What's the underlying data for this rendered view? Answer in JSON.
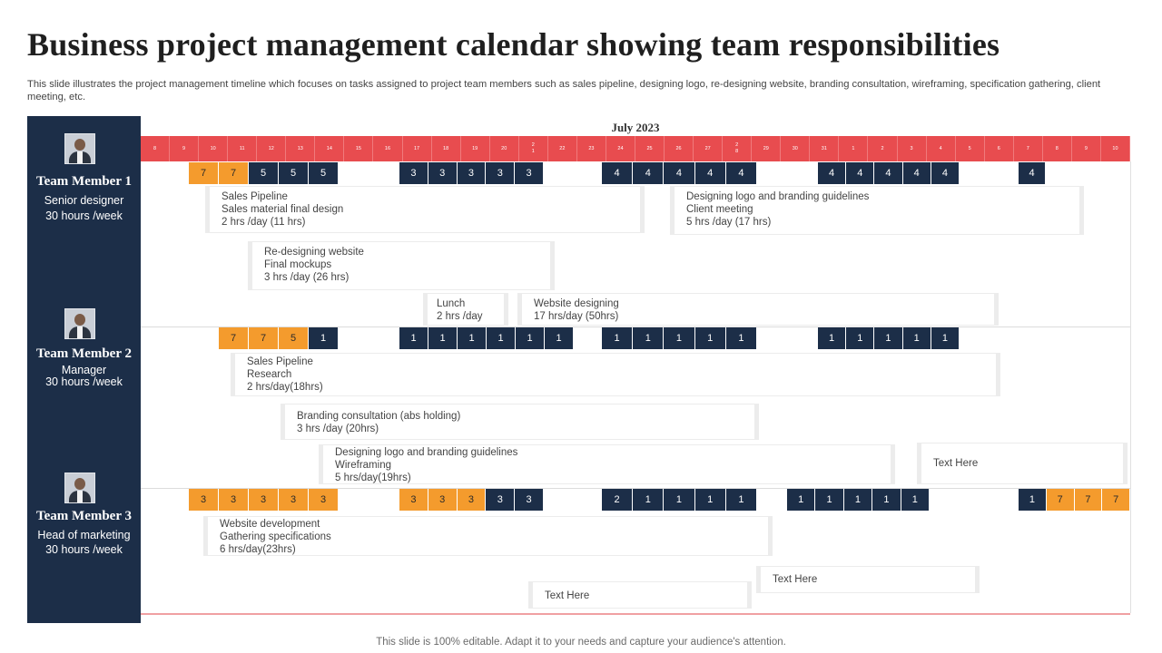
{
  "title": "Business project management calendar showing team responsibilities",
  "subtitle": "This slide illustrates the project management timeline which focuses on tasks assigned to project team members such as sales pipeline, designing logo, re-designing website, branding consultation, wireframing, specification gathering, client meeting, etc.",
  "month": "July 2023",
  "days": [
    "8",
    "9",
    "10",
    "11",
    "12",
    "13",
    "14",
    "15",
    "16",
    "17",
    "18",
    "19",
    "20",
    "2\n1",
    "22",
    "23",
    "24",
    "25",
    "26",
    "27",
    "2\n8",
    "29",
    "30",
    "31",
    "1",
    "2",
    "3",
    "4",
    "5",
    "6",
    "7",
    "8",
    "9",
    "10"
  ],
  "members": [
    {
      "name": "Team Member 1",
      "role": "Senior designer",
      "hours": "30 hours /week"
    },
    {
      "name": "Team Member 2",
      "role": "Manager",
      "hours": "30 hours /week"
    },
    {
      "name": "Team Member 3",
      "role": "Head of marketing",
      "hours": "30 hours /week"
    }
  ],
  "rows": [
    {
      "cells": [
        {
          "label": "7",
          "color": "orange"
        },
        {
          "label": "7",
          "color": "orange"
        },
        {
          "label": "5",
          "color": "navy"
        },
        {
          "label": "5",
          "color": "navy"
        },
        {
          "label": "5",
          "color": "navy"
        },
        {
          "label": "3",
          "color": "navy"
        },
        {
          "label": "3",
          "color": "navy"
        },
        {
          "label": "3",
          "color": "navy"
        },
        {
          "label": "3",
          "color": "navy"
        },
        {
          "label": "3",
          "color": "navy"
        },
        {
          "label": "4",
          "color": "navy"
        },
        {
          "label": "4",
          "color": "navy"
        },
        {
          "label": "4",
          "color": "navy"
        },
        {
          "label": "4",
          "color": "navy"
        },
        {
          "label": "4",
          "color": "navy"
        },
        {
          "label": "4",
          "color": "navy"
        },
        {
          "label": "4",
          "color": "navy"
        },
        {
          "label": "4",
          "color": "navy"
        },
        {
          "label": "4",
          "color": "navy"
        },
        {
          "label": "4",
          "color": "navy"
        },
        {
          "label": "4",
          "color": "navy"
        }
      ]
    },
    {
      "cells": [
        {
          "label": "7",
          "color": "orange"
        },
        {
          "label": "7",
          "color": "orange"
        },
        {
          "label": "5",
          "color": "orange"
        },
        {
          "label": "1",
          "color": "navy"
        },
        {
          "label": "1",
          "color": "navy"
        },
        {
          "label": "1",
          "color": "navy"
        },
        {
          "label": "1",
          "color": "navy"
        },
        {
          "label": "1",
          "color": "navy"
        },
        {
          "label": "1",
          "color": "navy"
        },
        {
          "label": "1",
          "color": "navy"
        },
        {
          "label": "1",
          "color": "navy"
        },
        {
          "label": "1",
          "color": "navy"
        },
        {
          "label": "1",
          "color": "navy"
        },
        {
          "label": "1",
          "color": "navy"
        },
        {
          "label": "1",
          "color": "navy"
        },
        {
          "label": "1",
          "color": "navy"
        },
        {
          "label": "1",
          "color": "navy"
        },
        {
          "label": "1",
          "color": "navy"
        },
        {
          "label": "1",
          "color": "navy"
        },
        {
          "label": "1",
          "color": "navy"
        }
      ]
    },
    {
      "cells": [
        {
          "label": "3",
          "color": "orange"
        },
        {
          "label": "3",
          "color": "orange"
        },
        {
          "label": "3",
          "color": "orange"
        },
        {
          "label": "3",
          "color": "orange"
        },
        {
          "label": "3",
          "color": "orange"
        },
        {
          "label": "3",
          "color": "orange"
        },
        {
          "label": "3",
          "color": "orange"
        },
        {
          "label": "3",
          "color": "orange"
        },
        {
          "label": "3",
          "color": "navy"
        },
        {
          "label": "3",
          "color": "navy"
        },
        {
          "label": "2",
          "color": "navy"
        },
        {
          "label": "1",
          "color": "navy"
        },
        {
          "label": "1",
          "color": "navy"
        },
        {
          "label": "1",
          "color": "navy"
        },
        {
          "label": "1",
          "color": "navy"
        },
        {
          "label": "1",
          "color": "navy"
        },
        {
          "label": "1",
          "color": "navy"
        },
        {
          "label": "1",
          "color": "navy"
        },
        {
          "label": "1",
          "color": "navy"
        },
        {
          "label": "1",
          "color": "navy"
        },
        {
          "label": "1",
          "color": "navy"
        },
        {
          "label": "7",
          "color": "orange"
        },
        {
          "label": "7",
          "color": "orange"
        },
        {
          "label": "7",
          "color": "orange"
        }
      ]
    }
  ],
  "tasks": [
    {
      "lines": [
        "Sales Pipeline",
        "Sales material final design",
        "2 hrs /day (11 hrs)"
      ]
    },
    {
      "lines": [
        "Designing logo and branding guidelines",
        "Client meeting",
        "5 hrs /day (17 hrs)"
      ]
    },
    {
      "lines": [
        "Re-designing website",
        "Final mockups",
        "3 hrs /day (26 hrs)"
      ]
    },
    {
      "lines": [
        "Lunch",
        "2 hrs /day"
      ]
    },
    {
      "lines": [
        "Website designing",
        "17 hrs/day (50hrs)"
      ]
    },
    {
      "lines": [
        "Sales Pipeline",
        "Research",
        "2 hrs/day(18hrs)"
      ]
    },
    {
      "lines": [
        "Branding consultation (abs holding)",
        "3 hrs /day (20hrs)"
      ]
    },
    {
      "lines": [
        "Designing logo and branding guidelines",
        "Wireframing",
        "5 hrs/day(19hrs)"
      ]
    },
    {
      "lines": [
        "Text Here"
      ]
    },
    {
      "lines": [
        "Website development",
        "Gathering specifications",
        "6 hrs/day(23hrs)"
      ]
    },
    {
      "lines": [
        "Text Here"
      ]
    },
    {
      "lines": [
        "Text Here"
      ]
    }
  ],
  "footer": "This slide is 100% editable. Adapt it to your needs and capture your audience's attention.",
  "colors": {
    "header_red": "#e84c4f",
    "navy": "#1c2e48",
    "orange": "#f49b2d"
  }
}
